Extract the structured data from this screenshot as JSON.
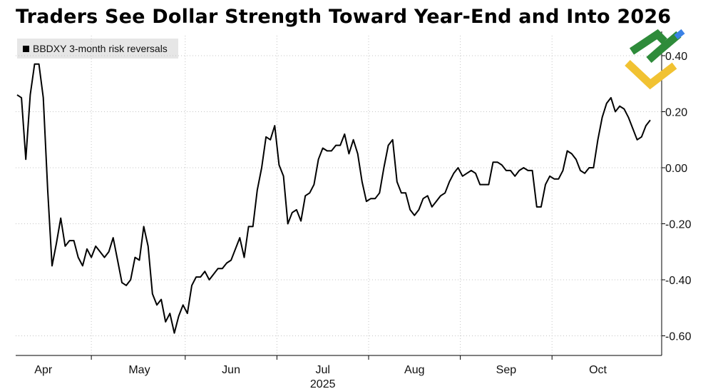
{
  "chart_data": {
    "type": "line",
    "title": "Traders See Dollar Strength Toward Year-End and Into 2026",
    "legend": "BBDXY 3-month risk reversals",
    "ylim": [
      -0.65,
      0.42
    ],
    "yticks": [
      0.4,
      0.2,
      0.0,
      -0.2,
      -0.4,
      -0.6
    ],
    "ytick_labels": [
      "0.40",
      "0.20",
      "0.00",
      "-0.20",
      "-0.40",
      "-0.60"
    ],
    "month_ticks": [
      {
        "label": "Apr",
        "x": 6
      },
      {
        "label": "May",
        "x": 28
      },
      {
        "label": "Jun",
        "x": 49
      },
      {
        "label": "Jul",
        "x": 70
      },
      {
        "label": "Aug",
        "x": 91
      },
      {
        "label": "Sep",
        "x": 112
      },
      {
        "label": "Oct",
        "x": 133
      }
    ],
    "year_label": "2025",
    "series": [
      {
        "color": "#000000",
        "values": [
          0.26,
          0.25,
          0.03,
          0.26,
          0.37,
          0.37,
          0.25,
          -0.08,
          -0.35,
          -0.27,
          -0.18,
          -0.28,
          -0.26,
          -0.26,
          -0.32,
          -0.35,
          -0.29,
          -0.32,
          -0.28,
          -0.3,
          -0.32,
          -0.3,
          -0.25,
          -0.33,
          -0.41,
          -0.42,
          -0.4,
          -0.32,
          -0.33,
          -0.21,
          -0.28,
          -0.45,
          -0.49,
          -0.47,
          -0.55,
          -0.52,
          -0.59,
          -0.53,
          -0.49,
          -0.52,
          -0.42,
          -0.39,
          -0.39,
          -0.37,
          -0.4,
          -0.38,
          -0.36,
          -0.36,
          -0.34,
          -0.33,
          -0.29,
          -0.25,
          -0.32,
          -0.21,
          -0.21,
          -0.08,
          0.0,
          0.11,
          0.1,
          0.15,
          0.01,
          -0.03,
          -0.2,
          -0.16,
          -0.15,
          -0.19,
          -0.1,
          -0.09,
          -0.06,
          0.03,
          0.07,
          0.06,
          0.06,
          0.08,
          0.08,
          0.12,
          0.05,
          0.1,
          0.05,
          -0.05,
          -0.12,
          -0.11,
          -0.11,
          -0.09,
          0.0,
          0.08,
          0.1,
          -0.05,
          -0.09,
          -0.09,
          -0.15,
          -0.17,
          -0.15,
          -0.11,
          -0.1,
          -0.14,
          -0.12,
          -0.1,
          -0.09,
          -0.05,
          -0.02,
          0.0,
          -0.03,
          -0.02,
          -0.01,
          -0.02,
          -0.06,
          -0.06,
          -0.06,
          0.02,
          0.02,
          0.01,
          -0.01,
          -0.01,
          -0.03,
          -0.01,
          0.0,
          -0.01,
          -0.01,
          -0.14,
          -0.14,
          -0.06,
          -0.03,
          -0.04,
          -0.04,
          -0.01,
          0.06,
          0.05,
          0.03,
          -0.01,
          -0.02,
          0.0,
          0.0,
          0.1,
          0.18,
          0.23,
          0.25,
          0.2,
          0.22,
          0.21,
          0.18,
          0.14,
          0.1,
          0.11,
          0.15,
          0.17
        ]
      }
    ]
  }
}
